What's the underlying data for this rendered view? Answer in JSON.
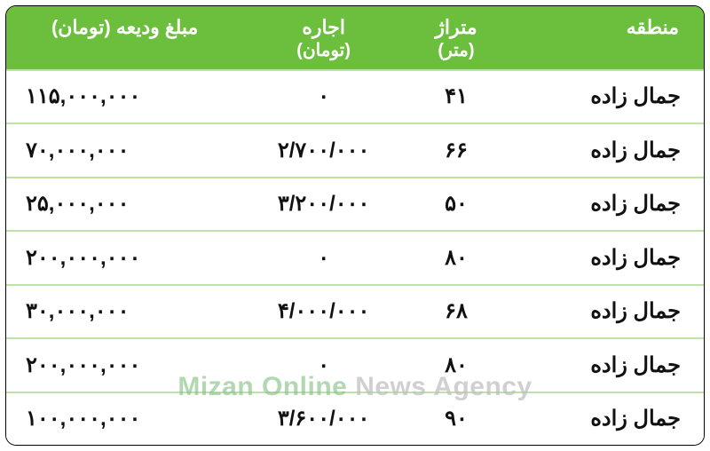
{
  "colors": {
    "header_bg": "#6bbf3c",
    "header_text": "#ffffff",
    "row_border": "#bfe3a6",
    "cell_text": "#111111",
    "background": "#ffffff",
    "watermark_green": "#7fbf7f",
    "watermark_gray": "#bdbdbd"
  },
  "table": {
    "type": "table",
    "columns": [
      {
        "key": "region",
        "label": "منطقه",
        "sub": "",
        "width_pct": 28,
        "align": "right"
      },
      {
        "key": "area",
        "label": "متراژ",
        "sub": "(متر)",
        "width_pct": 15,
        "align": "center"
      },
      {
        "key": "rent",
        "label": "اجاره",
        "sub": "(تومان)",
        "width_pct": 23,
        "align": "center"
      },
      {
        "key": "deposit",
        "label": "مبلغ ودیعه (تومان)",
        "sub": "",
        "width_pct": 34,
        "align": "left"
      }
    ],
    "rows": [
      {
        "region": "جمال زاده",
        "area": "۴۱",
        "rent": "۰",
        "deposit": "۱۱۵,۰۰۰,۰۰۰"
      },
      {
        "region": "جمال زاده",
        "area": "۶۶",
        "rent": "۲/۷۰۰/۰۰۰",
        "deposit": "۷۰,۰۰۰,۰۰۰"
      },
      {
        "region": "جمال زاده",
        "area": "۵۰",
        "rent": "۳/۲۰۰/۰۰۰",
        "deposit": "۲۵,۰۰۰,۰۰۰"
      },
      {
        "region": "جمال زاده",
        "area": "۸۰",
        "rent": "۰",
        "deposit": "۲۰۰,۰۰۰,۰۰۰"
      },
      {
        "region": "جمال زاده",
        "area": "۶۸",
        "rent": "۴/۰۰۰/۰۰۰",
        "deposit": "۳۰,۰۰۰,۰۰۰"
      },
      {
        "region": "جمال زاده",
        "area": "۸۰",
        "rent": "۰",
        "deposit": "۲۰۰,۰۰۰,۰۰۰"
      },
      {
        "region": "جمال زاده",
        "area": "۹۰",
        "rent": "۳/۶۰۰/۰۰۰",
        "deposit": "۱۰۰,۰۰۰,۰۰۰"
      }
    ]
  },
  "watermark": {
    "part1": "Mizan Online",
    "part2": " News Agency"
  }
}
